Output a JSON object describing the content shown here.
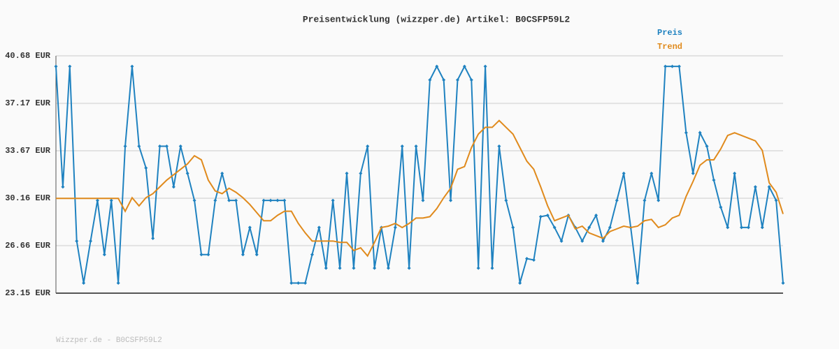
{
  "chart_data": {
    "type": "line",
    "title": "Preisentwicklung (wizzper.de) Artikel: B0CSFP59L2",
    "footer": "Wizzper.de - B0CSFP59L2",
    "ylim": [
      23.15,
      40.68
    ],
    "yticks": [
      {
        "value": 23.15,
        "label": "23.15 EUR"
      },
      {
        "value": 26.66,
        "label": "26.66 EUR"
      },
      {
        "value": 30.16,
        "label": "30.16 EUR"
      },
      {
        "value": 33.67,
        "label": "33.67 EUR"
      },
      {
        "value": 37.17,
        "label": "37.17 EUR"
      },
      {
        "value": 40.68,
        "label": "40.68 EUR"
      }
    ],
    "grid": true,
    "series": [
      {
        "name": "Preis",
        "color": "#1f82c0",
        "values": [
          39.9,
          31.0,
          39.9,
          27.0,
          23.9,
          27.0,
          30.0,
          26.0,
          30.0,
          23.9,
          34.0,
          39.9,
          34.0,
          32.4,
          27.2,
          34.0,
          34.0,
          31.0,
          34.0,
          32.0,
          30.0,
          26.0,
          26.0,
          30.0,
          32.0,
          30.0,
          30.0,
          26.0,
          28.0,
          26.0,
          30.0,
          30.0,
          30.0,
          30.0,
          23.9,
          23.9,
          23.9,
          26.0,
          28.0,
          25.0,
          30.0,
          25.0,
          32.0,
          25.0,
          32.0,
          34.0,
          25.0,
          28.0,
          25.0,
          28.0,
          34.0,
          25.0,
          34.0,
          30.0,
          38.9,
          39.9,
          38.9,
          30.0,
          38.9,
          39.9,
          38.9,
          25.0,
          39.9,
          25.0,
          34.0,
          30.0,
          28.0,
          23.9,
          25.7,
          25.6,
          28.8,
          28.9,
          28.0,
          27.0,
          28.9,
          28.0,
          27.0,
          28.0,
          28.9,
          27.0,
          28.0,
          30.0,
          32.0,
          28.0,
          23.9,
          30.0,
          32.0,
          30.0,
          39.9,
          39.9,
          39.9,
          35.0,
          32.0,
          35.0,
          34.0,
          31.5,
          29.5,
          28.0,
          32.0,
          28.0,
          28.0,
          31.0,
          28.0,
          31.0,
          30.0,
          23.9
        ]
      },
      {
        "name": "Trend",
        "color": "#e08a1c",
        "values": [
          30.15,
          30.15,
          30.15,
          30.15,
          30.15,
          30.15,
          30.15,
          30.15,
          30.15,
          30.15,
          29.2,
          30.2,
          29.6,
          30.2,
          30.5,
          31.0,
          31.5,
          31.9,
          32.3,
          32.7,
          33.3,
          33.0,
          31.5,
          30.7,
          30.5,
          30.9,
          30.6,
          30.2,
          29.7,
          29.1,
          28.5,
          28.5,
          28.9,
          29.2,
          29.2,
          28.3,
          27.6,
          27.0,
          27.0,
          27.0,
          27.0,
          26.9,
          26.9,
          26.3,
          26.5,
          25.9,
          26.9,
          28.0,
          28.1,
          28.3,
          28.0,
          28.3,
          28.7,
          28.7,
          28.8,
          29.4,
          30.2,
          30.9,
          32.3,
          32.5,
          33.9,
          34.9,
          35.4,
          35.4,
          35.9,
          35.4,
          34.9,
          33.9,
          32.9,
          32.3,
          31.0,
          29.6,
          28.5,
          28.7,
          28.9,
          27.9,
          28.1,
          27.6,
          27.4,
          27.2,
          27.7,
          27.9,
          28.1,
          28.0,
          28.1,
          28.5,
          28.6,
          28.0,
          28.2,
          28.7,
          28.9,
          30.3,
          31.4,
          32.6,
          33.0,
          33.0,
          33.8,
          34.8,
          35.0,
          34.8,
          34.6,
          34.4,
          33.7,
          31.3,
          30.6,
          29.0
        ]
      }
    ]
  }
}
